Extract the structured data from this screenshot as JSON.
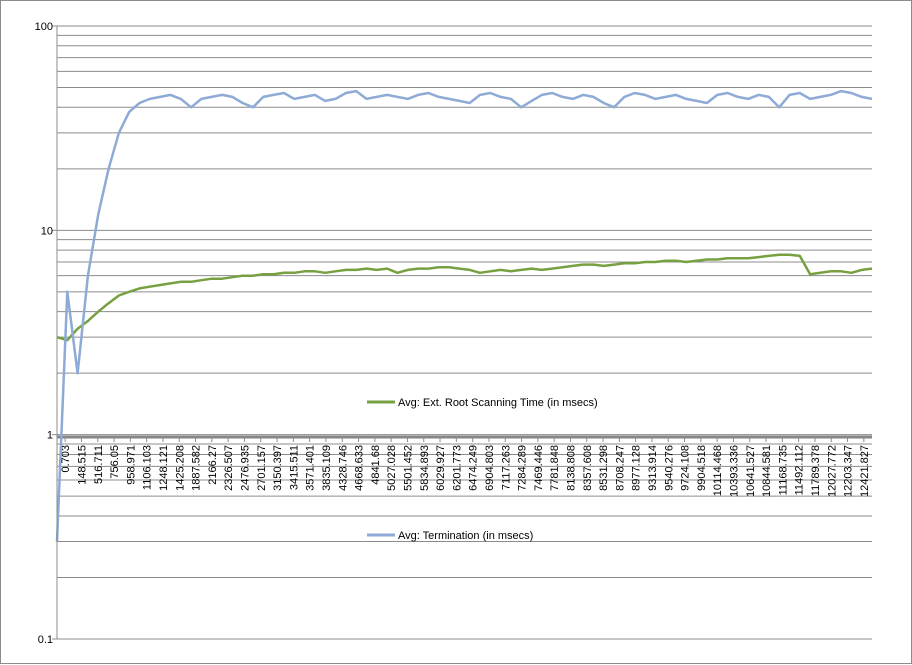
{
  "chart_data": {
    "type": "line",
    "title": "",
    "xlabel": "",
    "ylabel": "",
    "y_scale": "log",
    "ylim": [
      0.1,
      100
    ],
    "y_ticks": [
      "100",
      "10",
      "1",
      "0.1"
    ],
    "grid": "horizontal minor and major gridlines",
    "x_tick_labels": [
      "0.703",
      "148.515",
      "516.711",
      "756.05",
      "958.971",
      "1106.103",
      "1248.121",
      "1425.208",
      "1887.582",
      "2166.27",
      "2326.507",
      "2476.935",
      "2701.157",
      "3150.397",
      "3415.511",
      "3571.401",
      "3835.109",
      "4328.746",
      "4668.633",
      "4841.68",
      "5027.028",
      "5501.452",
      "5834.893",
      "6029.927",
      "6201.773",
      "6474.249",
      "6904.803",
      "7117.263",
      "7284.289",
      "7469.446",
      "7781.848",
      "8138.808",
      "8357.608",
      "8531.298",
      "8708.247",
      "8977.128",
      "9313.914",
      "9540.276",
      "9724.108",
      "9904.518",
      "10114.468",
      "10393.336",
      "10641.527",
      "10844.581",
      "11168.735",
      "11492.112",
      "11789.378",
      "12027.772",
      "12203.347",
      "12421.827"
    ],
    "series": [
      {
        "name": "Avg: Ext. Root Scanning Time (in msecs)",
        "color": "#77a040",
        "values": [
          3.0,
          2.9,
          3.3,
          3.6,
          4.0,
          4.4,
          4.8,
          5.0,
          5.2,
          5.3,
          5.4,
          5.5,
          5.6,
          5.6,
          5.7,
          5.8,
          5.8,
          5.9,
          6.0,
          6.0,
          6.1,
          6.1,
          6.2,
          6.2,
          6.3,
          6.3,
          6.2,
          6.3,
          6.4,
          6.4,
          6.5,
          6.4,
          6.5,
          6.2,
          6.4,
          6.5,
          6.5,
          6.6,
          6.6,
          6.5,
          6.4,
          6.2,
          6.3,
          6.4,
          6.3,
          6.4,
          6.5,
          6.4,
          6.5,
          6.6,
          6.7,
          6.8,
          6.8,
          6.7,
          6.8,
          6.9,
          6.9,
          7.0,
          7.0,
          7.1,
          7.1,
          7.0,
          7.1,
          7.2,
          7.2,
          7.3,
          7.3,
          7.3,
          7.4,
          7.5,
          7.6,
          7.6,
          7.5,
          6.1,
          6.2,
          6.3,
          6.3,
          6.2,
          6.4,
          6.5
        ]
      },
      {
        "name": "Avg: Termination (in msecs)",
        "color": "#8eaad6",
        "values": [
          0.3,
          5.0,
          2.0,
          6.0,
          12,
          20,
          30,
          38,
          42,
          44,
          45,
          46,
          44,
          40,
          44,
          45,
          46,
          45,
          42,
          40,
          45,
          46,
          47,
          44,
          45,
          46,
          43,
          44,
          47,
          48,
          44,
          45,
          46,
          45,
          44,
          46,
          47,
          45,
          44,
          43,
          42,
          46,
          47,
          45,
          44,
          40,
          43,
          46,
          47,
          45,
          44,
          46,
          45,
          42,
          40,
          45,
          47,
          46,
          44,
          45,
          46,
          44,
          43,
          42,
          46,
          47,
          45,
          44,
          46,
          45,
          40,
          46,
          47,
          44,
          45,
          46,
          48,
          47,
          45,
          44
        ]
      }
    ],
    "legend_position": "right-center"
  }
}
